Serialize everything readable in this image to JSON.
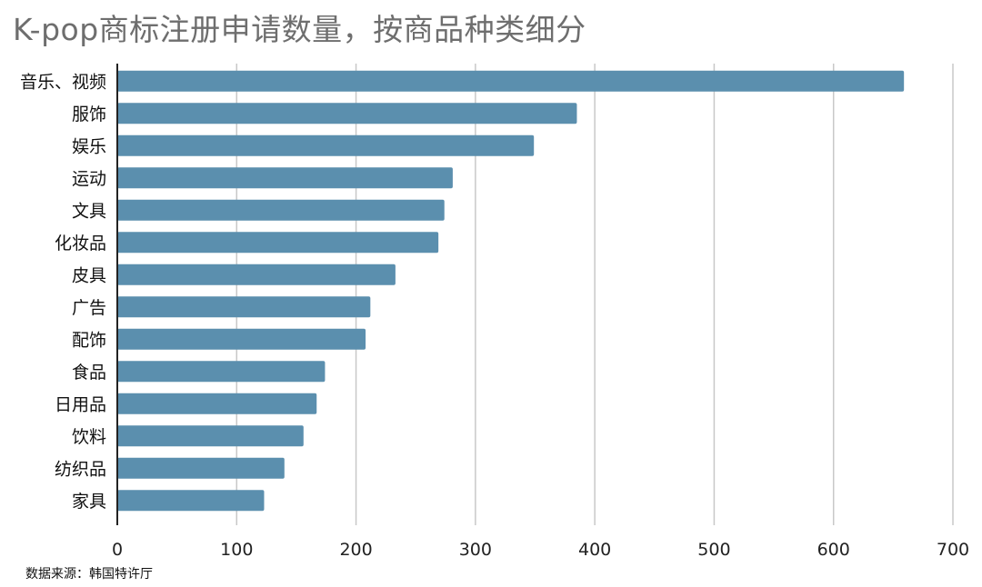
{
  "title": "K-pop商标注册申请数量，按商品种类细分",
  "source": "数据来源：韩国特许厅",
  "colors": {
    "bar": "#5b8fae",
    "grid": "#c8c8c8",
    "axis": "#222222"
  },
  "chart_data": {
    "type": "bar",
    "orientation": "horizontal",
    "categories": [
      "音乐、视频",
      "服饰",
      "娱乐",
      "运动",
      "文具",
      "化妆品",
      "皮具",
      "广告",
      "配饰",
      "食品",
      "日用品",
      "饮料",
      "纺织品",
      "家具"
    ],
    "values": [
      659,
      385,
      349,
      281,
      274,
      269,
      233,
      212,
      208,
      174,
      167,
      156,
      140,
      123
    ],
    "xlim": [
      0,
      700
    ],
    "xticks": [
      0,
      100,
      200,
      300,
      400,
      500,
      600,
      700
    ],
    "grid": "vertical"
  }
}
